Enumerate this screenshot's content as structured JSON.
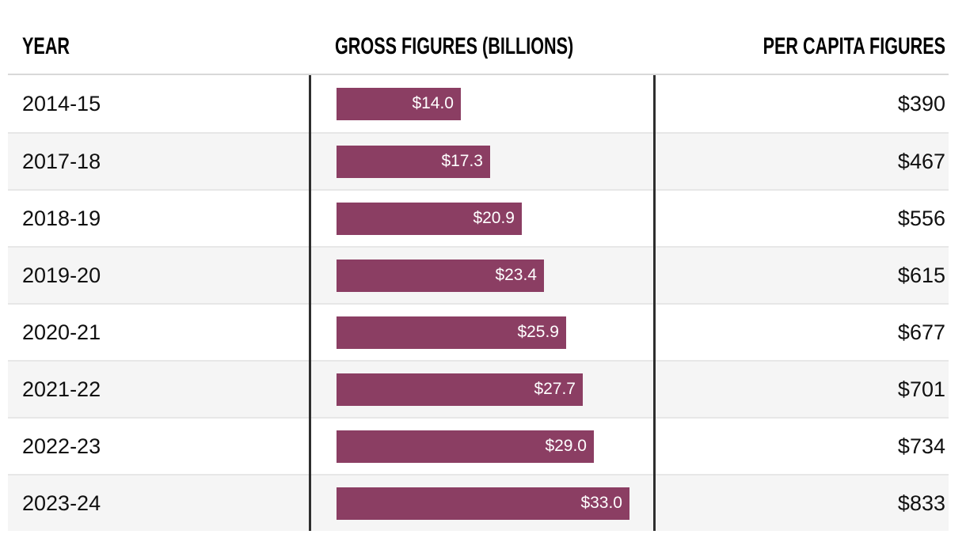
{
  "header": {
    "year_label": "YEAR",
    "gross_label": "GROSS FIGURES (BILLIONS)",
    "per_capita_label": "PER CAPITA FIGURES"
  },
  "colors": {
    "bar_fill": "#8b3e63",
    "bar_label_text": "#ffffff",
    "row_alt_background": "#f5f5f5",
    "row_rule": "#e7e7e7",
    "header_rule": "#d8d8d8",
    "column_divider": "#2e2e2e",
    "body_text": "#101010",
    "header_text": "#000000"
  },
  "table": {
    "rows": [
      {
        "year": "2014-15",
        "gross_label": "$14.0",
        "gross_value": 14.0,
        "per_capita": "$390"
      },
      {
        "year": "2017-18",
        "gross_label": "$17.3",
        "gross_value": 17.3,
        "per_capita": "$467"
      },
      {
        "year": "2018-19",
        "gross_label": "$20.9",
        "gross_value": 20.9,
        "per_capita": "$556"
      },
      {
        "year": "2019-20",
        "gross_label": "$23.4",
        "gross_value": 23.4,
        "per_capita": "$615"
      },
      {
        "year": "2020-21",
        "gross_label": "$25.9",
        "gross_value": 25.9,
        "per_capita": "$677"
      },
      {
        "year": "2021-22",
        "gross_label": "$27.7",
        "gross_value": 27.7,
        "per_capita": "$701"
      },
      {
        "year": "2022-23",
        "gross_label": "$29.0",
        "gross_value": 29.0,
        "per_capita": "$734"
      },
      {
        "year": "2023-24",
        "gross_label": "$33.0",
        "gross_value": 33.0,
        "per_capita": "$833"
      }
    ]
  },
  "chart_data": {
    "type": "bar",
    "orientation": "horizontal",
    "title": "",
    "categories": [
      "2014-15",
      "2017-18",
      "2018-19",
      "2019-20",
      "2020-21",
      "2021-22",
      "2022-23",
      "2023-24"
    ],
    "series": [
      {
        "name": "GROSS FIGURES (BILLIONS)",
        "values": [
          14.0,
          17.3,
          20.9,
          23.4,
          25.9,
          27.7,
          29.0,
          33.0
        ],
        "labels": [
          "$14.0",
          "$17.3",
          "$20.9",
          "$23.4",
          "$25.9",
          "$27.7",
          "$29.0",
          "$33.0"
        ]
      },
      {
        "name": "PER CAPITA FIGURES",
        "values": [
          390,
          467,
          556,
          615,
          677,
          701,
          734,
          833
        ],
        "labels": [
          "$390",
          "$467",
          "$556",
          "$615",
          "$677",
          "$701",
          "$734",
          "$833"
        ]
      }
    ],
    "value_prefix": "$",
    "max_bar_value": 33.0,
    "xlim": [
      0,
      33
    ],
    "grid": false,
    "legend": false,
    "bar_labels_inside": true
  }
}
